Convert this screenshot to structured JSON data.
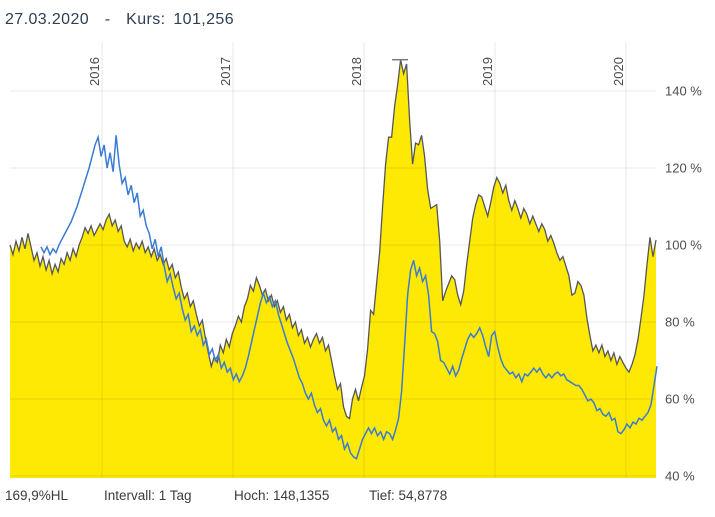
{
  "header": {
    "title": "27.03.2020  -  Kurs: 101,256"
  },
  "footer": {
    "stats": [
      {
        "label": "169,9%HL"
      },
      {
        "label": "Intervall: 1 Tag"
      },
      {
        "label": "Hoch: 148,1355"
      },
      {
        "label": "Tief: 54,8778"
      }
    ]
  },
  "colors": {
    "area_fill": "#fde903",
    "area_outline": "#55565a",
    "benchmark_line": "#3b7bd3",
    "grid": "rgba(0,0,0,0.09)",
    "axis_label": "#4d4d4d",
    "title_text": "#2d3f52",
    "high_marker": "#7a7a7e",
    "background": "#ffffff"
  },
  "chart_data": {
    "type": "area",
    "title": "Kurs (Prozentnotierung) mit Vergleichslinie",
    "xlabel": "",
    "ylabel": "%",
    "grid": true,
    "legend_position": "none",
    "x_axis": {
      "range": [
        2015.2977,
        2020.2366
      ],
      "ticks": [
        {
          "value": 2016,
          "label": "2016"
        },
        {
          "value": 2017,
          "label": "2017"
        },
        {
          "value": 2018,
          "label": "2018"
        },
        {
          "value": 2019,
          "label": "2019"
        },
        {
          "value": 2020,
          "label": "2020"
        }
      ]
    },
    "y_axis": {
      "range": [
        39.5,
        152.0
      ],
      "unit": "%",
      "ticks": [
        {
          "value": 140,
          "label": "140 %"
        },
        {
          "value": 120,
          "label": "120 %"
        },
        {
          "value": 100,
          "label": "100 %"
        },
        {
          "value": 80,
          "label": "80 %"
        },
        {
          "value": 60,
          "label": "60 %"
        },
        {
          "value": 40,
          "label": "40 %"
        }
      ]
    },
    "high_marker": {
      "value": 148.1355,
      "year": 2018.275
    },
    "last_value": 101.256,
    "high": 148.1355,
    "low": 54.8778,
    "series": [
      {
        "name": "kurs-area",
        "type": "area",
        "line_color": "#55565a",
        "fill_color": "#fde903",
        "x_start": 2015.2977,
        "x_end": 2020.229,
        "values": [
          100,
          97.5,
          101,
          98.5,
          102,
          99,
          103,
          99.5,
          96,
          98,
          94.5,
          97,
          93.5,
          96,
          92.5,
          95,
          93,
          96.5,
          95,
          98,
          96,
          99,
          97,
          100,
          102,
          104.5,
          103,
          105,
          102.5,
          104,
          105.5,
          104,
          106.5,
          108,
          105,
          106.5,
          103.5,
          105,
          101,
          99.5,
          101.5,
          98.5,
          100.5,
          99,
          101,
          98,
          99.5,
          97,
          99,
          96,
          97.5,
          95,
          96.5,
          93.5,
          95,
          91.5,
          93,
          89,
          86,
          87.5,
          84,
          85.5,
          82,
          79,
          80.5,
          76,
          72,
          68.5,
          71,
          69.5,
          74,
          72,
          75.5,
          73.5,
          77,
          79,
          81.5,
          80,
          84,
          86,
          89.5,
          88,
          91.5,
          89.5,
          87,
          88.5,
          85.5,
          87,
          84,
          85.5,
          82.5,
          84,
          80.5,
          82,
          78.5,
          80,
          76.5,
          78,
          74.5,
          76,
          73.5,
          75.5,
          77,
          74.5,
          76,
          72.5,
          74,
          70,
          66,
          62.5,
          64,
          58,
          55.5,
          54.9,
          60,
          62.5,
          59.5,
          63,
          66,
          73,
          83,
          82,
          90,
          98,
          110,
          121,
          128,
          128,
          136,
          141.5,
          148.1,
          144.5,
          147,
          132.5,
          121,
          126.5,
          126,
          128.5,
          123,
          114.5,
          109.5,
          110,
          110.5,
          101,
          85.5,
          88,
          90,
          92,
          91,
          87,
          84.5,
          88,
          95,
          101,
          107,
          110.5,
          113,
          112.5,
          110,
          107.5,
          111,
          115,
          117.5,
          116,
          113.5,
          115.5,
          111.5,
          109,
          111.5,
          109.5,
          107,
          109.5,
          108,
          105.5,
          107.5,
          105.5,
          103.5,
          105.5,
          104,
          101,
          102.5,
          100.5,
          98,
          96,
          97,
          94.5,
          92,
          87,
          87.5,
          90.5,
          89.5,
          87,
          81,
          76.5,
          72.5,
          74,
          72,
          74,
          71,
          72.5,
          70,
          72,
          69,
          71,
          69.5,
          68,
          67,
          69,
          71.5,
          75.5,
          81,
          87,
          95,
          102,
          97,
          101.3
        ]
      },
      {
        "name": "benchmark-line",
        "type": "line",
        "line_color": "#3b7bd3",
        "x_start": 2015.5344,
        "x_end": 2020.2366,
        "values": [
          99.5,
          98,
          99.5,
          97.5,
          99,
          98,
          100,
          101.5,
          103,
          104.5,
          106,
          108,
          110,
          112.5,
          115,
          117.5,
          120,
          123,
          126,
          128,
          123,
          126,
          120,
          124,
          119,
          128.5,
          121,
          116,
          117.5,
          113,
          115.5,
          111,
          113.5,
          107.5,
          109,
          105,
          103,
          99,
          101.5,
          97,
          99.5,
          94.5,
          90.5,
          92.5,
          89,
          86,
          87.5,
          83.5,
          80.5,
          82,
          77.5,
          79,
          76.5,
          78,
          74,
          75.5,
          71.5,
          73,
          70,
          71.5,
          68,
          69.5,
          67,
          68,
          65,
          66.5,
          64.5,
          66,
          68,
          71,
          74.5,
          78,
          81.5,
          85,
          87.5,
          85,
          86.5,
          84,
          85.5,
          82,
          79.5,
          77,
          74.5,
          72.5,
          70.5,
          68,
          65.5,
          64,
          61.5,
          60,
          61.5,
          58.5,
          56.5,
          57.5,
          54.5,
          53,
          54.5,
          51.5,
          52.5,
          49.5,
          50.5,
          47,
          48.5,
          46,
          45,
          44.5,
          47,
          49.5,
          51,
          52.5,
          51,
          52.5,
          50.5,
          51.5,
          49.5,
          51.5,
          51,
          49.5,
          52,
          55,
          62,
          74,
          87,
          93.5,
          96,
          92,
          94,
          90.5,
          92,
          87,
          77.5,
          77,
          75,
          70,
          69.5,
          68,
          66.5,
          68.5,
          66,
          67.5,
          70.5,
          73,
          75.5,
          77,
          76,
          77,
          78.5,
          76.5,
          73.5,
          71,
          76.5,
          77.5,
          73.5,
          70.5,
          68.5,
          67.5,
          66.5,
          67,
          65.5,
          66.5,
          64.5,
          66.5,
          66,
          67,
          68,
          67,
          68,
          66.5,
          65.5,
          66.5,
          65.5,
          66.5,
          67,
          66,
          66.5,
          65,
          64.5,
          64,
          63.5,
          63.5,
          62.5,
          61,
          59.5,
          60,
          59,
          57,
          57.5,
          56,
          55.5,
          56.5,
          54.5,
          55,
          51.5,
          51,
          52,
          53.5,
          52.5,
          54,
          53.5,
          55,
          54.5,
          55.5,
          56.5,
          58.5,
          63.5,
          68.5
        ]
      }
    ]
  }
}
